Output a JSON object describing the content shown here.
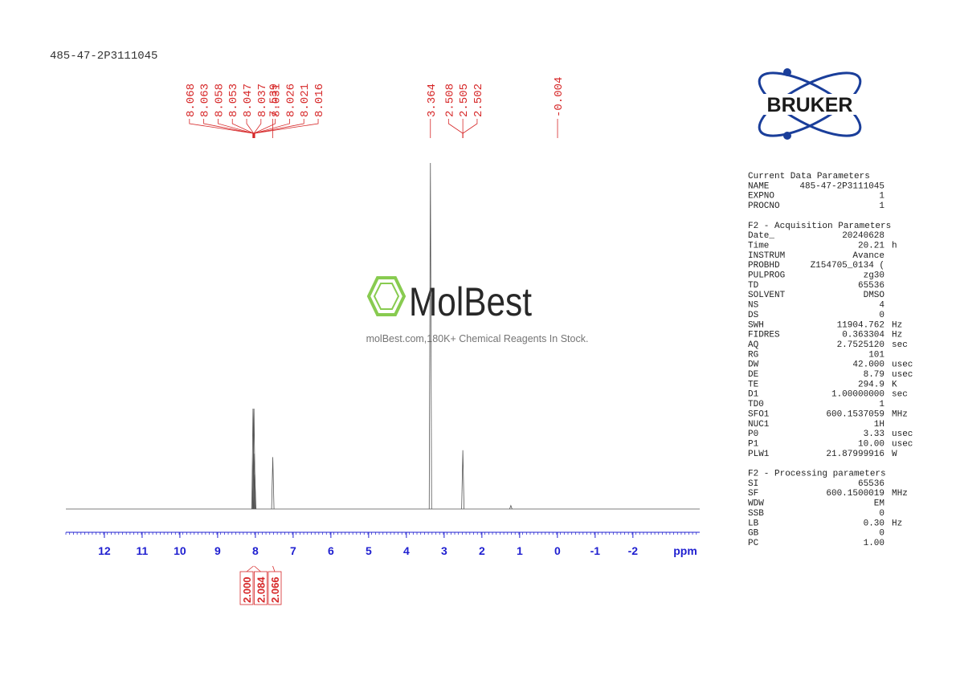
{
  "sample_id": "485-47-2P3111045",
  "chart_data": {
    "type": "nmr",
    "xlabel": "ppm",
    "xlim": [
      13.02,
      -3.77
    ],
    "xticks": [
      12,
      11,
      10,
      9,
      8,
      7,
      6,
      5,
      4,
      3,
      2,
      1,
      0,
      -1,
      -2
    ],
    "color": "#555555",
    "label_color": "#d62728",
    "axis_color": "#1f1fd0",
    "peak_labels": [
      8.068,
      8.063,
      8.058,
      8.053,
      8.047,
      8.037,
      8.031,
      8.026,
      8.021,
      8.016,
      7.539,
      3.364,
      2.508,
      2.505,
      2.502,
      -0.004
    ],
    "spectrum": {
      "x": [
        8.063,
        8.053,
        8.037,
        8.026,
        8.016,
        7.539,
        3.364,
        2.505,
        1.233
      ],
      "values": [
        0.29,
        0.16,
        0.29,
        0.16,
        0.1,
        0.15,
        1.0,
        0.17,
        0.01
      ]
    },
    "integral_x": [
      8.05,
      8.03,
      7.54
    ],
    "integrals": [
      {
        "value": 2,
        "label": "2.000"
      },
      {
        "value": 2.084,
        "label": "2.084"
      },
      {
        "value": 2.066,
        "label": "2.066"
      }
    ]
  },
  "watermark": {
    "brand": "MolBest",
    "tagline": "molBest.com,180K+ Chemical Reagents In Stock."
  },
  "logo": "BRUKER",
  "parameters": [
    {
      "title": "Current Data Parameters",
      "rows": [
        [
          "NAME",
          "485-47-2P3111045"
        ],
        [
          "EXPNO",
          "1"
        ],
        [
          "PROCNO",
          "1"
        ]
      ]
    },
    {
      "title": "F2 - Acquisition Parameters",
      "rows": [
        [
          "Date_",
          "20240628"
        ],
        [
          "Time",
          "20.21",
          "h"
        ],
        [
          "INSTRUM",
          "Avance"
        ],
        [
          "PROBHD",
          "Z154705_0134 ("
        ],
        [
          "PULPROG",
          "zg30"
        ],
        [
          "TD",
          "65536"
        ],
        [
          "SOLVENT",
          "DMSO"
        ],
        [
          "NS",
          "4"
        ],
        [
          "DS",
          "0"
        ],
        [
          "SWH",
          "11904.762",
          "Hz"
        ],
        [
          "FIDRES",
          "0.363304",
          "Hz"
        ],
        [
          "AQ",
          "2.7525120",
          "sec"
        ],
        [
          "RG",
          "101"
        ],
        [
          "DW",
          "42.000",
          "usec"
        ],
        [
          "DE",
          "8.79",
          "usec"
        ],
        [
          "TE",
          "294.9",
          "K"
        ],
        [
          "D1",
          "1.00000000",
          "sec"
        ],
        [
          "TD0",
          "1"
        ],
        [
          "SFO1",
          "600.1537059",
          "MHz"
        ],
        [
          "NUC1",
          "1H"
        ],
        [
          "P0",
          "3.33",
          "usec"
        ],
        [
          "P1",
          "10.00",
          "usec"
        ],
        [
          "PLW1",
          "21.87999916",
          "W"
        ]
      ]
    },
    {
      "title": "F2 - Processing parameters",
      "rows": [
        [
          "SI",
          "65536"
        ],
        [
          "SF",
          "600.1500019",
          "MHz"
        ],
        [
          "WDW",
          "EM"
        ],
        [
          "SSB",
          "0"
        ],
        [
          "LB",
          "0.30",
          "Hz"
        ],
        [
          "GB",
          "0"
        ],
        [
          "PC",
          "1.00"
        ]
      ]
    }
  ]
}
